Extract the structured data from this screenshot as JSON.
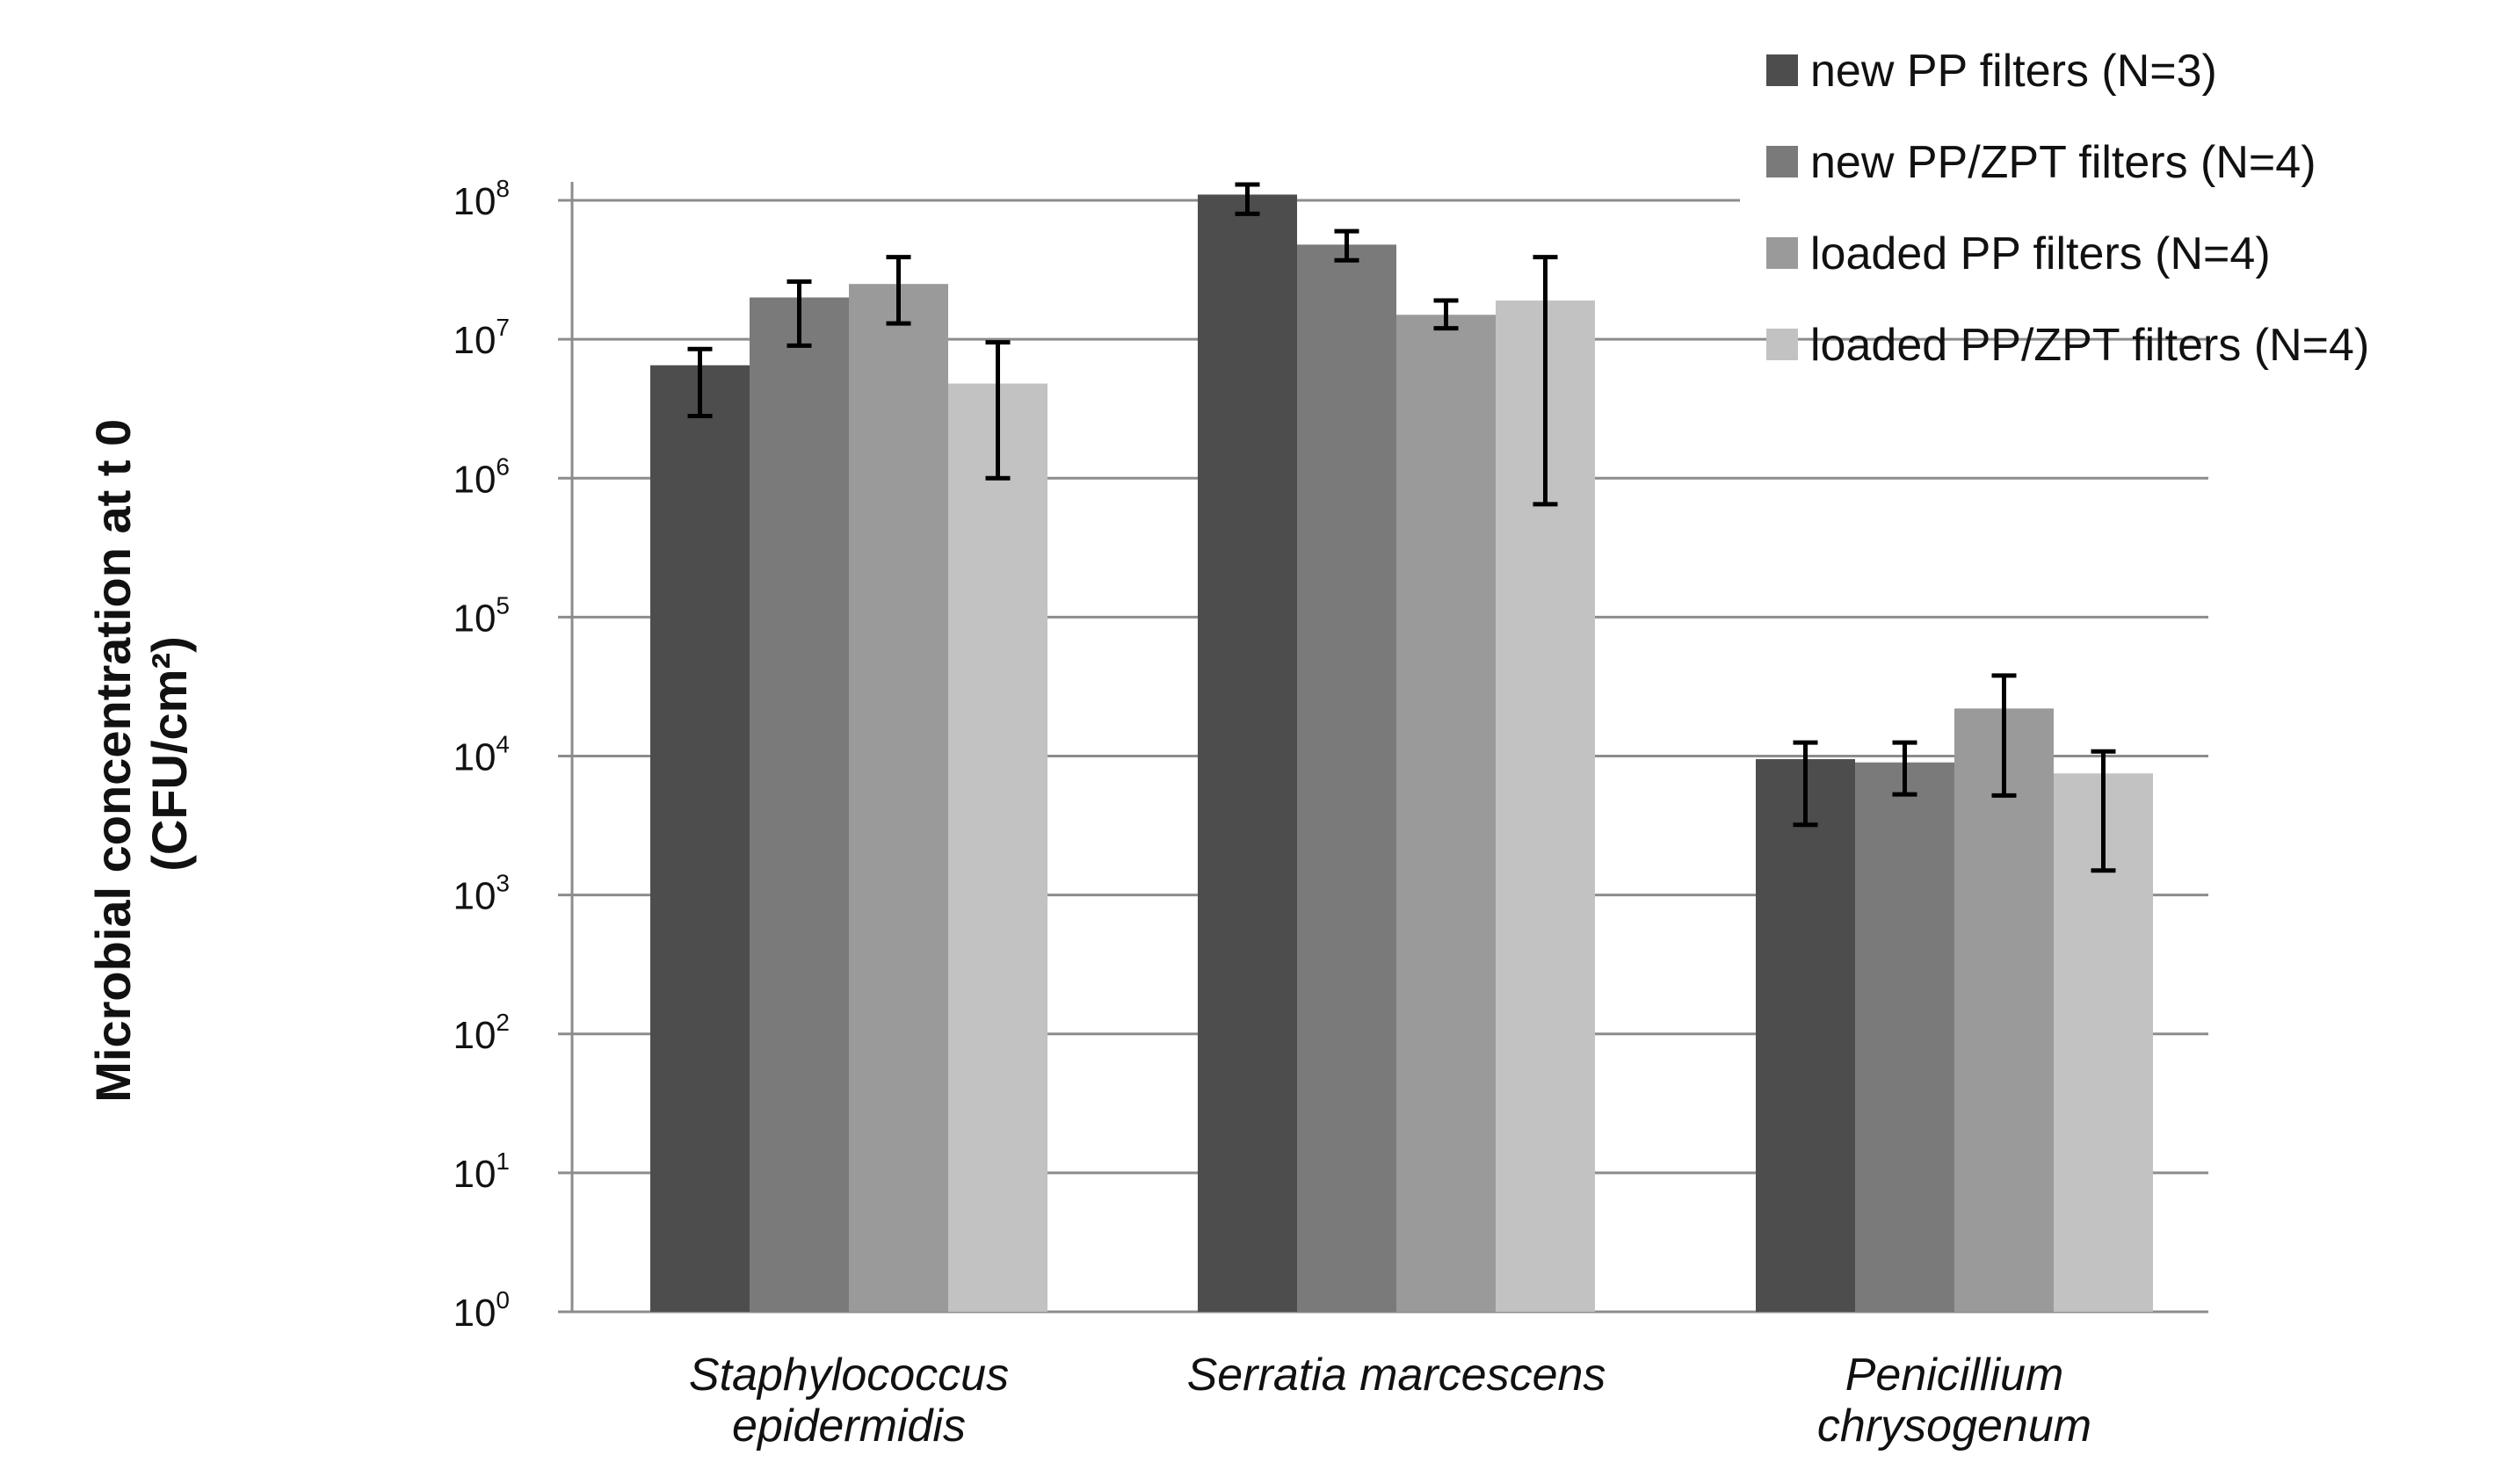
{
  "chart_data": {
    "type": "bar",
    "title": "",
    "xlabel": "",
    "ylabel": [
      "Microbial concentration at t 0",
      "(CFU/cm²)"
    ],
    "yscale": "log",
    "ylim": [
      1,
      100000000
    ],
    "yticks": [
      {
        "base": "10",
        "exp": "8",
        "value": 100000000
      },
      {
        "base": "10",
        "exp": "7",
        "value": 10000000
      },
      {
        "base": "10",
        "exp": "6",
        "value": 1000000
      },
      {
        "base": "10",
        "exp": "5",
        "value": 100000
      },
      {
        "base": "10",
        "exp": "4",
        "value": 10000
      },
      {
        "base": "10",
        "exp": "3",
        "value": 1000
      },
      {
        "base": "10",
        "exp": "2",
        "value": 100
      },
      {
        "base": "10",
        "exp": "1",
        "value": 10
      },
      {
        "base": "10",
        "exp": "0",
        "value": 1
      }
    ],
    "grid": true,
    "legend_position": "top-right",
    "categories": [
      [
        "Staphylococcus",
        "epidermidis"
      ],
      [
        "Serratia marcescens"
      ],
      [
        "Penicillium",
        "chrysogenum"
      ]
    ],
    "series": [
      {
        "name": "new PP filters (N=3)",
        "color": "#4d4d4d",
        "values": [
          6500000,
          110000000,
          9500
        ],
        "err_low": [
          2800000,
          80000000,
          3200
        ],
        "err_high": [
          8500000,
          130000000,
          12500
        ]
      },
      {
        "name": "new PP/ZPT filters (N=4)",
        "color": "#7a7a7a",
        "values": [
          20000000,
          48000000,
          9000
        ],
        "err_low": [
          9000000,
          37000000,
          5300
        ],
        "err_high": [
          26000000,
          60000000,
          12500
        ]
      },
      {
        "name": "loaded PP filters (N=4)",
        "color": "#9a9a9a",
        "values": [
          25000000,
          15000000,
          22000
        ],
        "err_low": [
          13000000,
          12000000,
          5200
        ],
        "err_high": [
          39000000,
          19000000,
          38000
        ]
      },
      {
        "name": "loaded PP/ZPT filters (N=4)",
        "color": "#c2c2c2",
        "values": [
          4800000,
          19000000,
          7500
        ],
        "err_low": [
          1000000,
          650000,
          1500
        ],
        "err_high": [
          9500000,
          39000000,
          10800
        ]
      }
    ]
  }
}
